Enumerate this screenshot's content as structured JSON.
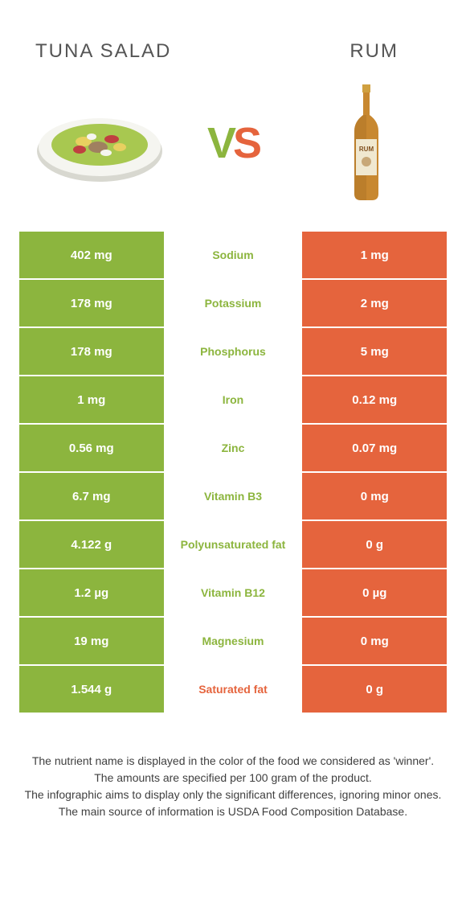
{
  "header": {
    "left_title": "Tuna Salad",
    "right_title": "Rum",
    "vs_v": "V",
    "vs_s": "S"
  },
  "colors": {
    "green": "#8cb53e",
    "orange": "#e5643d",
    "plate_white": "#f5f5f0",
    "plate_shadow": "#d8d8d0",
    "salad_green": "#a8c850",
    "salad_yellow": "#e8d060",
    "salad_red": "#c04040",
    "salad_brown": "#a08060",
    "bottle_amber": "#c88830",
    "bottle_dark": "#a06820",
    "bottle_label": "#f0e8d0",
    "bottle_cap": "#d0a040"
  },
  "rows": [
    {
      "left": "402 mg",
      "label": "Sodium",
      "right": "1 mg",
      "winner": "green"
    },
    {
      "left": "178 mg",
      "label": "Potassium",
      "right": "2 mg",
      "winner": "green"
    },
    {
      "left": "178 mg",
      "label": "Phosphorus",
      "right": "5 mg",
      "winner": "green"
    },
    {
      "left": "1 mg",
      "label": "Iron",
      "right": "0.12 mg",
      "winner": "green"
    },
    {
      "left": "0.56 mg",
      "label": "Zinc",
      "right": "0.07 mg",
      "winner": "green"
    },
    {
      "left": "6.7 mg",
      "label": "Vitamin B3",
      "right": "0 mg",
      "winner": "green"
    },
    {
      "left": "4.122 g",
      "label": "Polyunsaturated fat",
      "right": "0 g",
      "winner": "green"
    },
    {
      "left": "1.2 µg",
      "label": "Vitamin B12",
      "right": "0 µg",
      "winner": "green"
    },
    {
      "left": "19 mg",
      "label": "Magnesium",
      "right": "0 mg",
      "winner": "green"
    },
    {
      "left": "1.544 g",
      "label": "Saturated fat",
      "right": "0 g",
      "winner": "orange"
    }
  ],
  "footer": {
    "line1": "The nutrient name is displayed in the color of the food we considered as 'winner'.",
    "line2": "The amounts are specified per 100 gram of the product.",
    "line3": "The infographic aims to display only the significant differences, ignoring minor ones.",
    "line4": "The main source of information is USDA Food Composition Database."
  }
}
